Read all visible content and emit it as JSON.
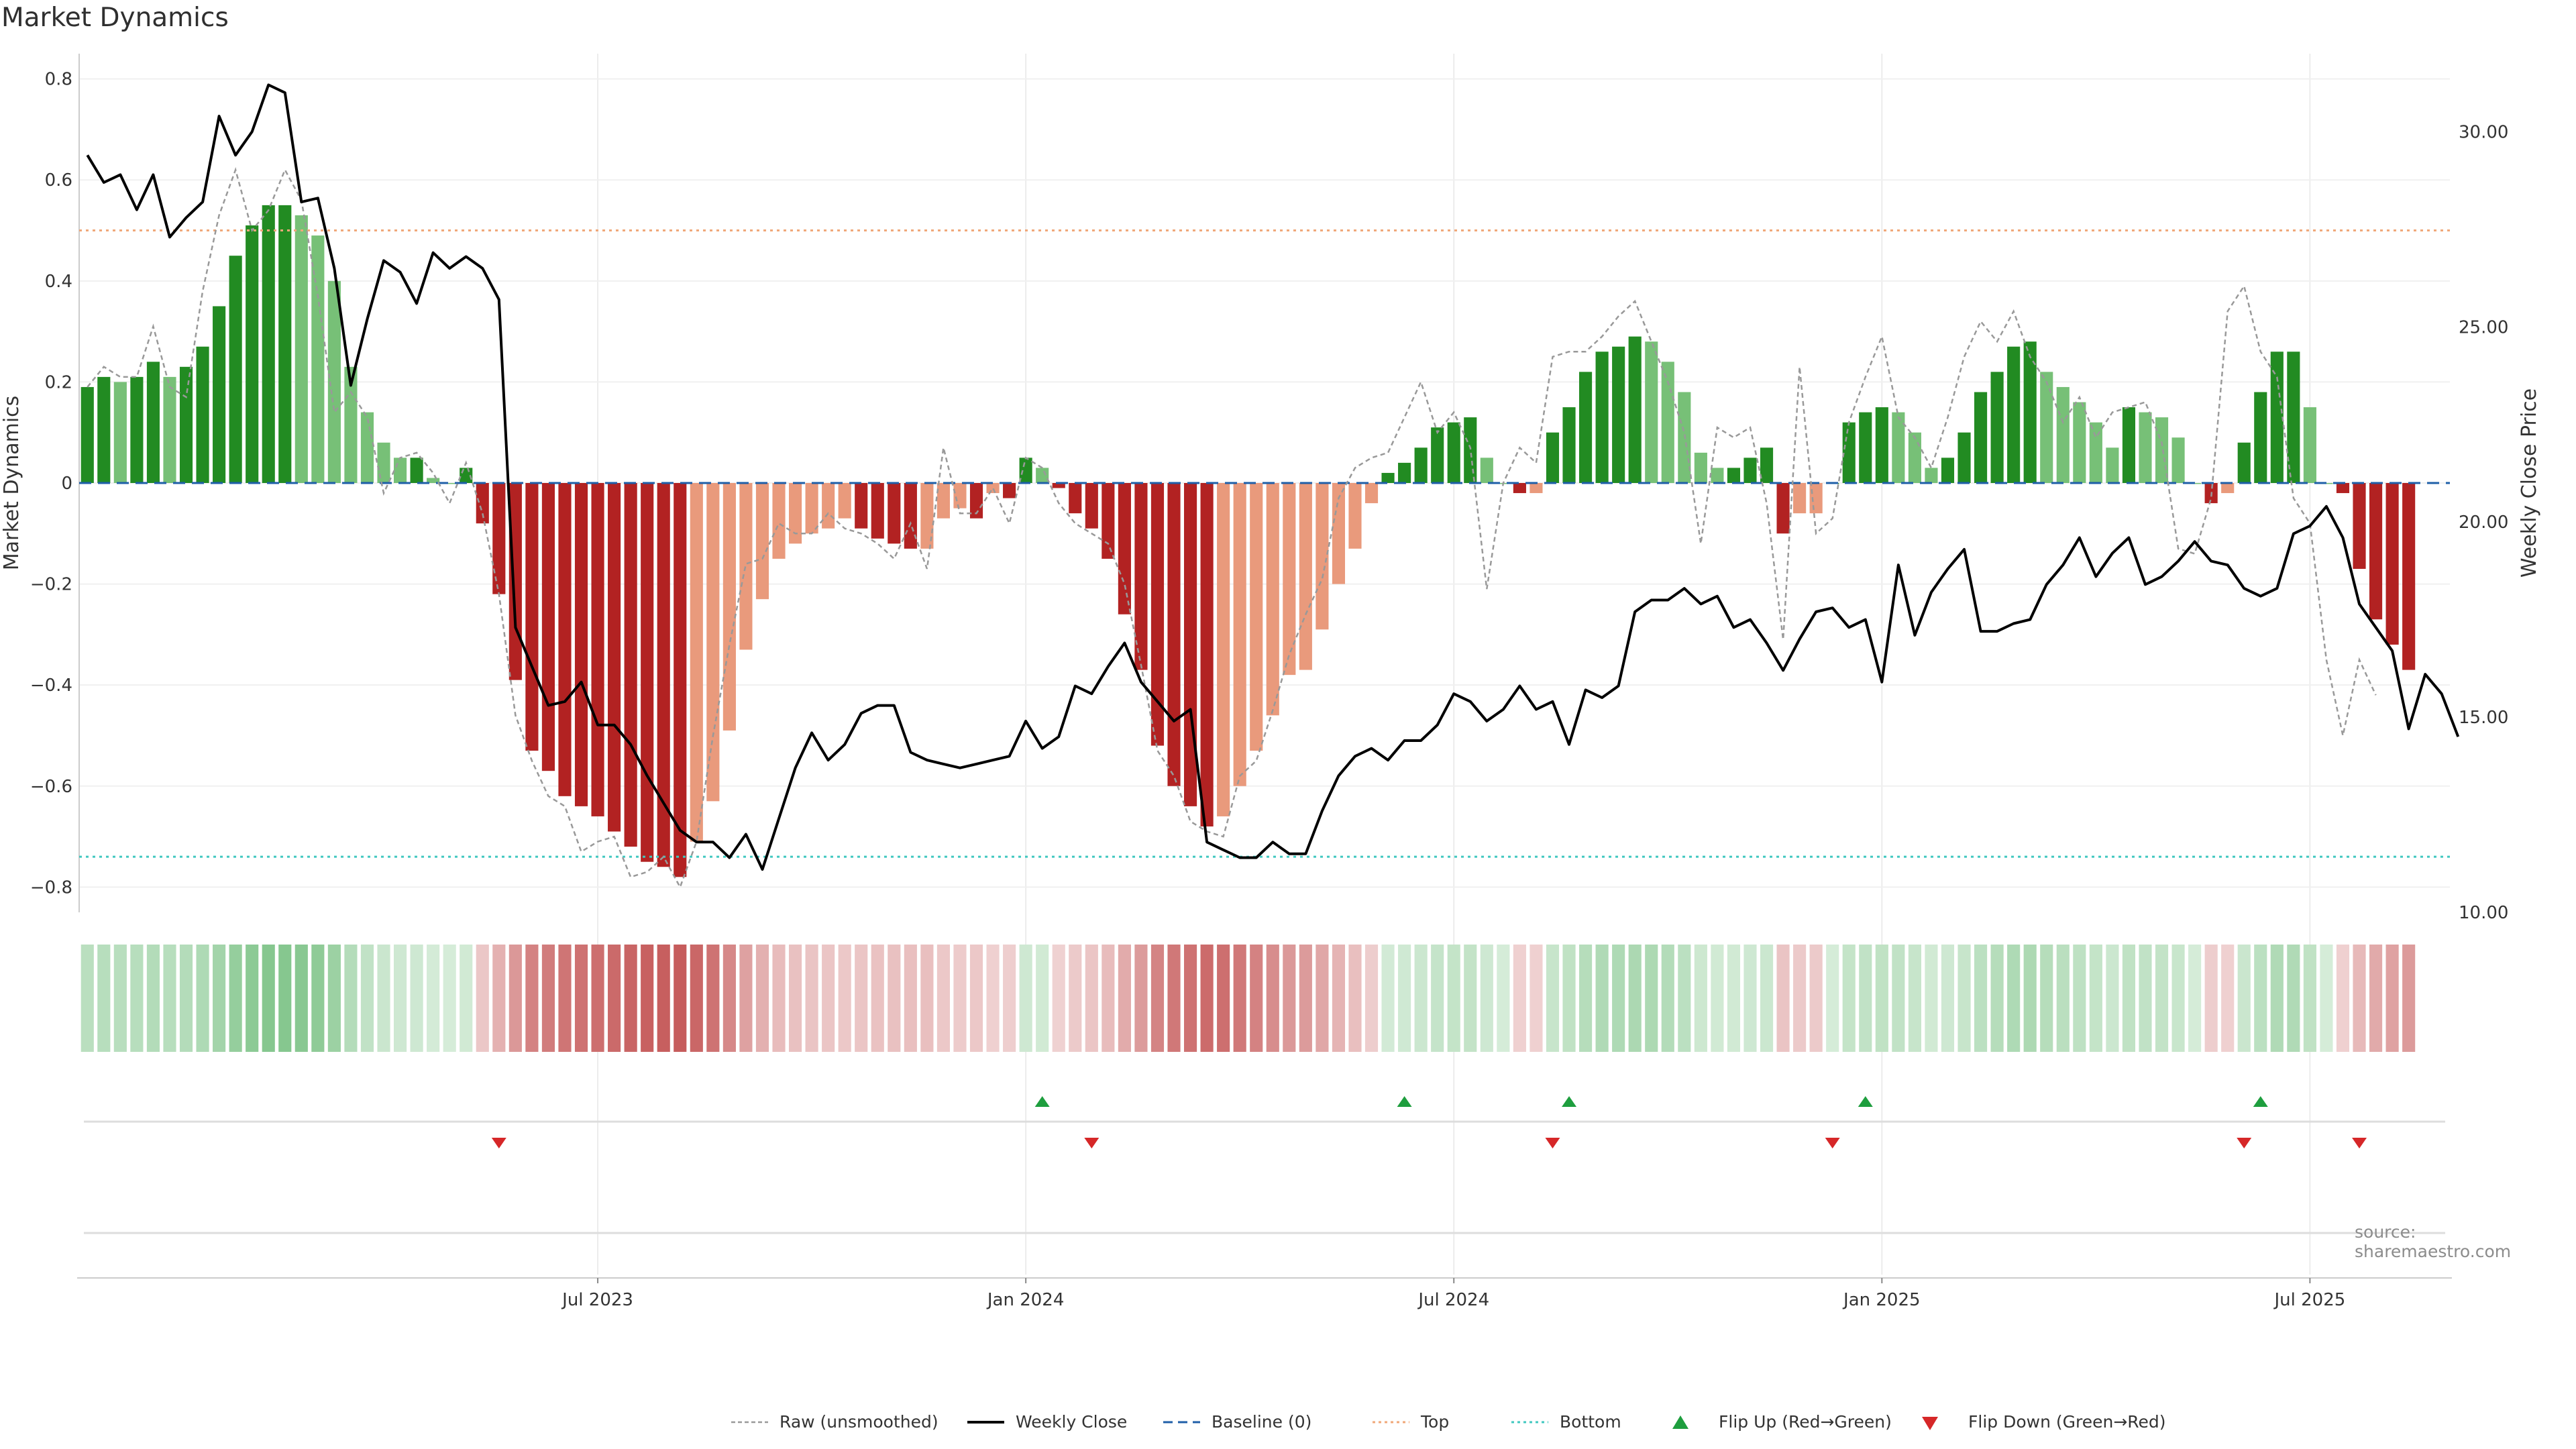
{
  "title": "Market Dynamics",
  "source": "source: sharemaestro.com",
  "chart_data": {
    "type": "bar",
    "title": "Market Dynamics",
    "ylabel": "Market Dynamics",
    "y2label": "Weekly Close Price",
    "ylim": [
      -0.85,
      0.85
    ],
    "y2lim": [
      10,
      32
    ],
    "yticks": [
      0.8,
      0.6,
      0.4,
      0.2,
      0,
      -0.2,
      -0.4,
      -0.6,
      -0.8
    ],
    "ytick_labels": [
      "0.8",
      "0.6",
      "0.4",
      "0.2",
      "0",
      "−0.2",
      "−0.4",
      "−0.6",
      "−0.8"
    ],
    "y2ticks": [
      30,
      25,
      20,
      15,
      10
    ],
    "y2tick_labels": [
      "30.00",
      "25.00",
      "20.00",
      "15.00",
      "10.00"
    ],
    "xticks": [
      {
        "label": "Jul 2023",
        "week": 31
      },
      {
        "label": "Jan 2024",
        "week": 57
      },
      {
        "label": "Jul 2024",
        "week": 83
      },
      {
        "label": "Jan 2025",
        "week": 109
      },
      {
        "label": "Jul 2025",
        "week": 135
      }
    ],
    "n_weeks": 144,
    "top_threshold": 0.5,
    "bottom_threshold": -0.74,
    "colors": {
      "pos_strong": "#228b22",
      "pos_weak": "#77c077",
      "neg_strong": "#b22222",
      "neg_weak": "#e99a7c",
      "close": "#000000",
      "raw": "#999999",
      "baseline": "#1f5fa8",
      "top": "#f0a87a",
      "bottom": "#40c8c0",
      "flip_up": "#1e9e3e",
      "flip_down": "#d62728"
    },
    "series": [
      {
        "name": "Market Dynamics",
        "values": [
          0.19,
          0.21,
          0.2,
          0.21,
          0.24,
          0.21,
          0.23,
          0.27,
          0.35,
          0.45,
          0.51,
          0.55,
          0.55,
          0.53,
          0.49,
          0.4,
          0.23,
          0.14,
          0.08,
          0.05,
          0.05,
          0.01,
          0,
          0.03,
          -0.08,
          -0.22,
          -0.39,
          -0.53,
          -0.57,
          -0.62,
          -0.64,
          -0.66,
          -0.69,
          -0.72,
          -0.75,
          -0.76,
          -0.78,
          -0.71,
          -0.63,
          -0.49,
          -0.33,
          -0.23,
          -0.15,
          -0.12,
          -0.1,
          -0.09,
          -0.07,
          -0.09,
          -0.11,
          -0.12,
          -0.13,
          -0.13,
          -0.07,
          -0.05,
          -0.07,
          -0.02,
          -0.03,
          0.05,
          0.03,
          -0.01,
          -0.06,
          -0.09,
          -0.15,
          -0.26,
          -0.37,
          -0.52,
          -0.6,
          -0.64,
          -0.68,
          -0.66,
          -0.6,
          -0.53,
          -0.46,
          -0.38,
          -0.37,
          -0.29,
          -0.2,
          -0.13,
          -0.04,
          0.02,
          0.04,
          0.07,
          0.11,
          0.12,
          0.13,
          0.05,
          0,
          -0.02,
          -0.02,
          0.1,
          0.15,
          0.22,
          0.26,
          0.27,
          0.29,
          0.28,
          0.24,
          0.18,
          0.06,
          0.03,
          0.03,
          0.05,
          0.07,
          -0.1,
          -0.06,
          -0.06,
          0,
          0.12,
          0.14,
          0.15,
          0.14,
          0.1,
          0.03,
          0.05,
          0.1,
          0.18,
          0.22,
          0.27,
          0.28,
          0.22,
          0.19,
          0.16,
          0.12,
          0.07,
          0.15,
          0.14,
          0.13,
          0.09,
          0,
          -0.04,
          -0.02,
          0.08,
          0.18,
          0.26,
          0.26,
          0.15,
          0,
          -0.02,
          -0.17,
          -0.27,
          -0.32,
          -0.37
        ]
      },
      {
        "name": "Raw (unsmoothed)",
        "values": [
          0.19,
          0.23,
          0.21,
          0.21,
          0.31,
          0.19,
          0.17,
          0.38,
          0.53,
          0.62,
          0.5,
          0.54,
          0.62,
          0.56,
          0.37,
          0.14,
          0.18,
          0.13,
          -0.02,
          0.05,
          0.06,
          0.02,
          -0.04,
          0.04,
          -0.06,
          -0.22,
          -0.46,
          -0.55,
          -0.62,
          -0.64,
          -0.73,
          -0.71,
          -0.7,
          -0.78,
          -0.77,
          -0.74,
          -0.8,
          -0.71,
          -0.5,
          -0.32,
          -0.16,
          -0.15,
          -0.08,
          -0.1,
          -0.1,
          -0.06,
          -0.09,
          -0.1,
          -0.12,
          -0.15,
          -0.08,
          -0.17,
          0.07,
          -0.06,
          -0.06,
          -0.01,
          -0.08,
          0.05,
          0.03,
          -0.04,
          -0.08,
          -0.1,
          -0.12,
          -0.2,
          -0.36,
          -0.53,
          -0.58,
          -0.67,
          -0.69,
          -0.7,
          -0.58,
          -0.55,
          -0.45,
          -0.34,
          -0.26,
          -0.19,
          -0.03,
          0.03,
          0.05,
          0.06,
          0.13,
          0.2,
          0.1,
          0.14,
          0.07,
          -0.21,
          0,
          0.07,
          0.04,
          0.25,
          0.26,
          0.26,
          0.29,
          0.33,
          0.36,
          0.28,
          0.2,
          0.1,
          -0.12,
          0.11,
          0.09,
          0.11,
          -0.04,
          -0.31,
          0.23,
          -0.1,
          -0.07,
          0.12,
          0.21,
          0.29,
          0.13,
          0.09,
          0.03,
          0.13,
          0.25,
          0.32,
          0.28,
          0.34,
          0.25,
          0.2,
          0.12,
          0.17,
          0.09,
          0.14,
          0.15,
          0.16,
          0.08,
          -0.13,
          -0.14,
          -0.03,
          0.34,
          0.39,
          0.26,
          0.21,
          -0.03,
          -0.08,
          -0.35,
          -0.5,
          -0.35,
          -0.42
        ]
      },
      {
        "name": "Weekly Close",
        "values": [
          29.4,
          28.7,
          28.9,
          28,
          28.9,
          27.3,
          27.8,
          28.2,
          30.4,
          29.4,
          30,
          31.2,
          31,
          28.2,
          28.3,
          26.5,
          23.5,
          25.2,
          26.7,
          26.4,
          25.6,
          26.9,
          26.5,
          26.8,
          26.5,
          25.7,
          17.3,
          16.3,
          15.3,
          15.4,
          15.9,
          14.8,
          14.8,
          14.3,
          13.5,
          12.8,
          12.1,
          11.8,
          11.8,
          11.4,
          12,
          11.1,
          12.4,
          13.7,
          14.6,
          13.9,
          14.3,
          15.1,
          15.3,
          15.3,
          14.1,
          13.9,
          13.8,
          13.7,
          13.8,
          13.9,
          14,
          14.9,
          14.2,
          14.5,
          15.8,
          15.6,
          16.3,
          16.9,
          15.9,
          15.4,
          14.9,
          15.2,
          11.8,
          11.6,
          11.4,
          11.4,
          11.8,
          11.5,
          11.5,
          12.6,
          13.5,
          14,
          14.2,
          13.9,
          14.4,
          14.4,
          14.8,
          15.6,
          15.4,
          14.9,
          15.2,
          15.8,
          15.2,
          15.4,
          14.3,
          15.7,
          15.5,
          15.8,
          17.7,
          18,
          18,
          18.3,
          17.9,
          18.1,
          17.3,
          17.5,
          16.9,
          16.2,
          17,
          17.7,
          17.8,
          17.3,
          17.5,
          15.9,
          18.9,
          17.1,
          18.2,
          18.8,
          19.3,
          17.2,
          17.2,
          17.4,
          17.5,
          18.4,
          18.9,
          19.6,
          18.6,
          19.2,
          19.6,
          18.4,
          18.6,
          19,
          19.5,
          19,
          18.9,
          18.3,
          18.1,
          18.3,
          19.7,
          19.9,
          20.4,
          19.6,
          17.9,
          17.3,
          16.7,
          14.7,
          16.1,
          15.6,
          14.5
        ]
      }
    ],
    "flip_up_weeks": [
      58,
      80,
      90,
      108,
      132
    ],
    "flip_down_weeks": [
      25,
      61,
      89,
      106,
      131,
      138
    ],
    "legend": [
      "Raw (unsmoothed)",
      "Weekly Close",
      "Baseline (0)",
      "Top",
      "Bottom",
      "Flip Up (Red→Green)",
      "Flip Down (Green→Red)"
    ]
  }
}
